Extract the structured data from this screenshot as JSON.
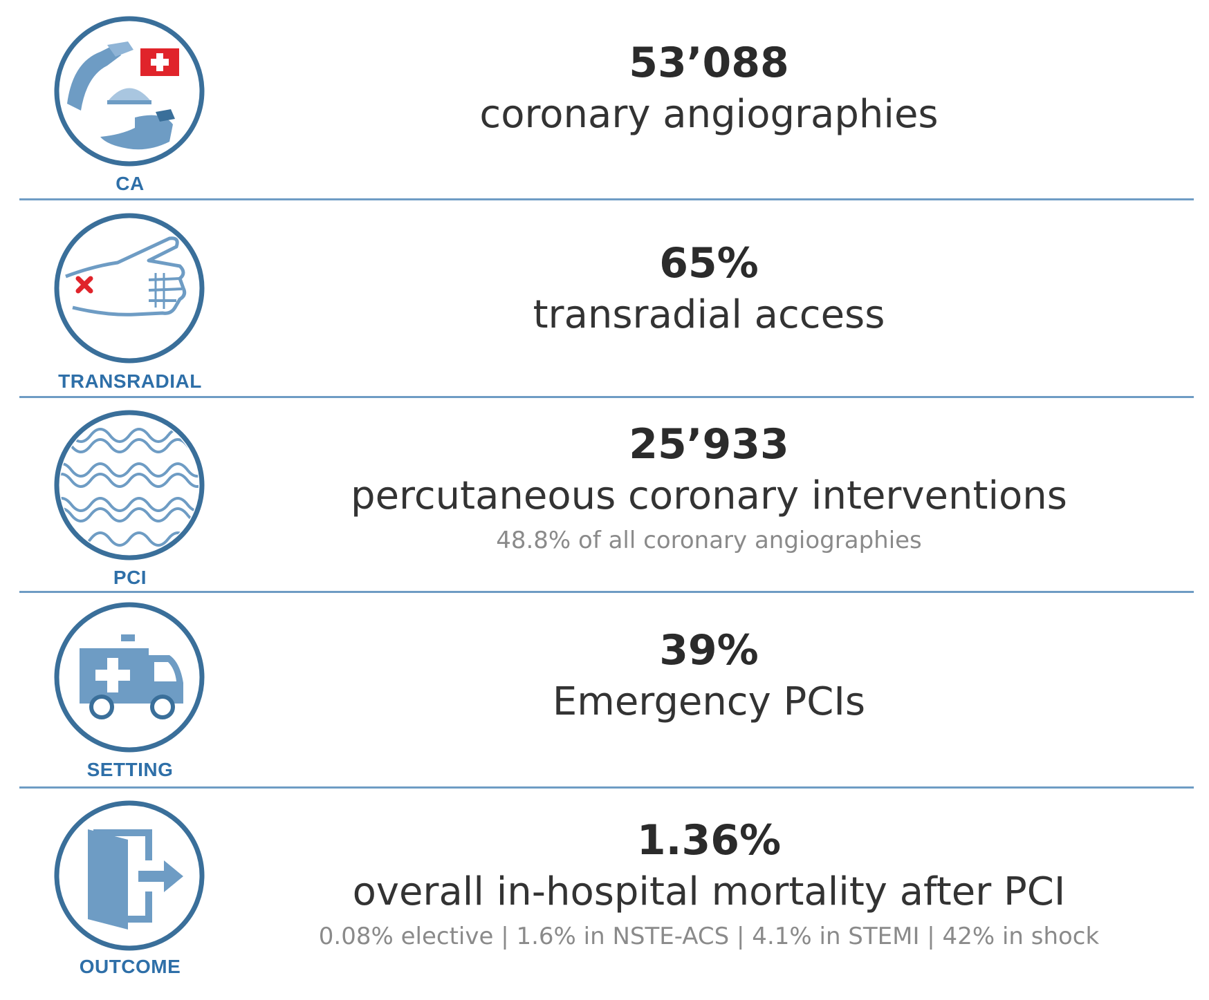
{
  "colors": {
    "accent": "#2e6fa8",
    "icon_stroke": "#3a6f9a",
    "icon_fill": "#6e9cc4",
    "divider": "#6e9cc4",
    "swiss_red": "#e0242b",
    "cross_red": "#e0242b"
  },
  "rows": [
    {
      "icon": "angiography-hands-icon",
      "label": "CA",
      "value": "53’088",
      "description": "coronary angiographies",
      "note": ""
    },
    {
      "icon": "hand-wrist-icon",
      "label": "TRANSRADIAL",
      "value": "65%",
      "description": "transradial access",
      "note": ""
    },
    {
      "icon": "stent-icon",
      "label": "PCI",
      "value": "25’933",
      "description": "percutaneous coronary interventions",
      "note": "48.8% of all coronary angiographies"
    },
    {
      "icon": "ambulance-icon",
      "label": "SETTING",
      "value": "39%",
      "description": "Emergency PCIs",
      "note": ""
    },
    {
      "icon": "exit-door-icon",
      "label": "OUTCOME",
      "value": "1.36%",
      "description": "overall in-hospital mortality after PCI",
      "note": "0.08% elective | 1.6% in NSTE-ACS  | 4.1% in STEMI | 42% in shock"
    }
  ]
}
